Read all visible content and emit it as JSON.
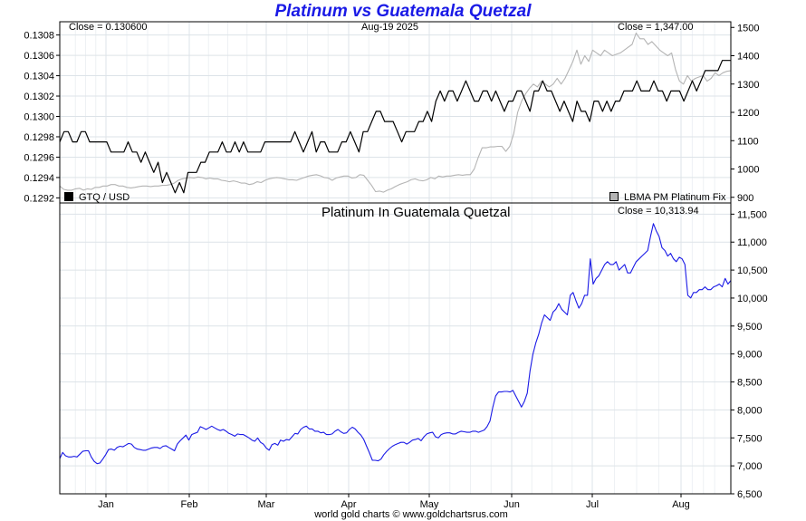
{
  "title": "Platinum vs Guatemala Quetzal",
  "footer": "world gold charts © www.goldchartsrus.com",
  "top_panel": {
    "close_left": "Close = 0.130600",
    "date_label": "Aug-19  2025",
    "close_right": "Close = 1,347.00",
    "legend_left": "GTQ / USD",
    "legend_right": "LBMA PM Platinum Fix",
    "legend_left_color": "#000000",
    "legend_right_color": "#b4b4b4"
  },
  "bottom_panel": {
    "subtitle": "Platinum In Guatemala Quetzal",
    "close_label": "Close = 10,313.94"
  },
  "chart_data": [
    {
      "type": "line",
      "panel": "top",
      "x_tick_labels": [
        "Jan",
        "Feb",
        "Mar",
        "Apr",
        "May",
        "Jun",
        "Jul",
        "Aug"
      ],
      "y_left_ticks": [
        "0.1292",
        "0.1294",
        "0.1296",
        "0.1298",
        "0.1300",
        "0.1302",
        "0.1304",
        "0.1306",
        "0.1308"
      ],
      "y_left_range": [
        0.12915,
        0.13093
      ],
      "y_right_ticks": [
        "900",
        "1000",
        "1100",
        "1200",
        "1300",
        "1400",
        "1500"
      ],
      "y_right_range": [
        880,
        1520
      ],
      "grid": true,
      "series": [
        {
          "name": "GTQ / USD",
          "axis": "left",
          "color": "#000000",
          "values": [
            0.12975,
            0.12985,
            0.12985,
            0.12975,
            0.12975,
            0.12985,
            0.12985,
            0.12975,
            0.12975,
            0.12975,
            0.12975,
            0.12975,
            0.12965,
            0.12965,
            0.12965,
            0.12965,
            0.12975,
            0.12965,
            0.12965,
            0.12955,
            0.12965,
            0.12955,
            0.12945,
            0.12955,
            0.12935,
            0.12945,
            0.12935,
            0.12925,
            0.12935,
            0.12925,
            0.12945,
            0.12945,
            0.12945,
            0.12955,
            0.12955,
            0.12965,
            0.12965,
            0.12965,
            0.12975,
            0.12965,
            0.12965,
            0.12975,
            0.12965,
            0.12975,
            0.12965,
            0.12965,
            0.12965,
            0.12965,
            0.12975,
            0.12975,
            0.12975,
            0.12975,
            0.12975,
            0.12975,
            0.12975,
            0.12985,
            0.12975,
            0.12965,
            0.12975,
            0.12985,
            0.12965,
            0.12975,
            0.12975,
            0.12965,
            0.12965,
            0.12965,
            0.12975,
            0.12975,
            0.12985,
            0.12975,
            0.12965,
            0.12985,
            0.12985,
            0.12995,
            0.13005,
            0.13005,
            0.12995,
            0.12995,
            0.12995,
            0.12985,
            0.12975,
            0.12985,
            0.12985,
            0.12985,
            0.12995,
            0.12995,
            0.13005,
            0.12995,
            0.13015,
            0.13025,
            0.13015,
            0.13025,
            0.13025,
            0.13015,
            0.13025,
            0.13035,
            0.13025,
            0.13015,
            0.13015,
            0.13025,
            0.13025,
            0.13015,
            0.13025,
            0.13015,
            0.13005,
            0.13015,
            0.13015,
            0.13025,
            0.13025,
            0.13015,
            0.13005,
            0.13025,
            0.13025,
            0.13035,
            0.13025,
            0.13025,
            0.13015,
            0.13005,
            0.13015,
            0.13005,
            0.12995,
            0.13015,
            0.13005,
            0.13005,
            0.12995,
            0.13015,
            0.13015,
            0.13005,
            0.13015,
            0.13005,
            0.13015,
            0.13015,
            0.13025,
            0.13025,
            0.13025,
            0.13035,
            0.13025,
            0.13025,
            0.13025,
            0.13035,
            0.13025,
            0.13025,
            0.13015,
            0.13025,
            0.13025,
            0.13025,
            0.13015,
            0.13025,
            0.13035,
            0.13025,
            0.13035,
            0.13045,
            0.13045,
            0.13045,
            0.13045,
            0.13055,
            0.13055,
            0.13055
          ]
        },
        {
          "name": "LBMA PM Platinum Fix",
          "axis": "right",
          "color": "#b4b4b4",
          "values": [
            940,
            928,
            925,
            925,
            930,
            932,
            925,
            930,
            928,
            935,
            935,
            940,
            940,
            945,
            945,
            940,
            940,
            935,
            933,
            935,
            938,
            940,
            940,
            938,
            940,
            940,
            942,
            942,
            945,
            950,
            960,
            965,
            968,
            970,
            968,
            972,
            970,
            965,
            968,
            965,
            965,
            960,
            958,
            955,
            958,
            955,
            950,
            950,
            945,
            948,
            955,
            952,
            960,
            965,
            968,
            970,
            968,
            965,
            962,
            962,
            960,
            965,
            970,
            975,
            978,
            980,
            976,
            970,
            968,
            960,
            968,
            972,
            975,
            975,
            968,
            970,
            980,
            978,
            960,
            942,
            920,
            922,
            918,
            925,
            930,
            938,
            945,
            950,
            955,
            962,
            965,
            960,
            958,
            962,
            970,
            965,
            975,
            972,
            975,
            975,
            978,
            980,
            978,
            980,
            980,
            1000,
            1040,
            1075,
            1075,
            1078,
            1078,
            1080,
            1080,
            1062,
            1080,
            1125,
            1200,
            1240,
            1265,
            1285,
            1300,
            1290,
            1310,
            1300,
            1290,
            1300,
            1320,
            1300,
            1320,
            1350,
            1380,
            1420,
            1370,
            1400,
            1380,
            1420,
            1410,
            1400,
            1420,
            1410,
            1400,
            1405,
            1410,
            1420,
            1430,
            1440,
            1480,
            1460,
            1460,
            1440,
            1450,
            1435,
            1420,
            1410,
            1400,
            1410,
            1350,
            1310,
            1300,
            1330,
            1310,
            1320,
            1325,
            1330,
            1310,
            1320,
            1340,
            1330,
            1340,
            1345,
            1347
          ]
        }
      ]
    },
    {
      "type": "line",
      "panel": "bottom",
      "title": "Platinum In Guatemala Quetzal",
      "x_tick_labels": [
        "Jan",
        "Feb",
        "Mar",
        "Apr",
        "May",
        "Jun",
        "Jul",
        "Aug"
      ],
      "y_ticks": [
        "6,500",
        "7,000",
        "7,500",
        "8,000",
        "8,500",
        "9,000",
        "9,500",
        "10,000",
        "10,500",
        "11,000",
        "11,500"
      ],
      "y_range": [
        6500,
        11700
      ],
      "grid": true,
      "series": [
        {
          "name": "",
          "color": "#1a1ae6",
          "values": [
            7130,
            7240,
            7180,
            7160,
            7160,
            7170,
            7160,
            7210,
            7260,
            7270,
            7270,
            7160,
            7080,
            7040,
            7050,
            7120,
            7200,
            7290,
            7300,
            7280,
            7330,
            7350,
            7340,
            7370,
            7400,
            7390,
            7330,
            7300,
            7290,
            7280,
            7280,
            7300,
            7320,
            7330,
            7330,
            7310,
            7350,
            7360,
            7330,
            7300,
            7270,
            7390,
            7450,
            7500,
            7550,
            7460,
            7560,
            7580,
            7600,
            7700,
            7680,
            7650,
            7680,
            7710,
            7680,
            7650,
            7630,
            7650,
            7620,
            7580,
            7560,
            7530,
            7570,
            7560,
            7560,
            7530,
            7500,
            7460,
            7440,
            7500,
            7420,
            7390,
            7320,
            7280,
            7380,
            7400,
            7370,
            7460,
            7440,
            7470,
            7460,
            7520,
            7580,
            7570,
            7650,
            7690,
            7710,
            7660,
            7660,
            7620,
            7620,
            7590,
            7600,
            7560,
            7560,
            7570,
            7620,
            7650,
            7610,
            7580,
            7590,
            7650,
            7690,
            7660,
            7600,
            7550,
            7470,
            7350,
            7230,
            7100,
            7100,
            7090,
            7120,
            7200,
            7260,
            7310,
            7350,
            7380,
            7400,
            7420,
            7420,
            7390,
            7420,
            7460,
            7470,
            7490,
            7450,
            7520,
            7570,
            7590,
            7600,
            7520,
            7500,
            7560,
            7580,
            7590,
            7590,
            7570,
            7570,
            7600,
            7620,
            7610,
            7600,
            7600,
            7620,
            7620,
            7600,
            7620,
            7640,
            7700,
            7800,
            8050,
            8250,
            8320,
            8320,
            8330,
            8330,
            8320,
            8350,
            8250,
            8150,
            8050,
            8150,
            8300,
            8700,
            9000,
            9200,
            9350,
            9550,
            9700,
            9650,
            9600,
            9750,
            9800,
            9900,
            9800,
            9750,
            9700,
            10050,
            10100,
            9950,
            9820,
            9900,
            10050,
            10050,
            10700,
            10250,
            10350,
            10400,
            10500,
            10600,
            10650,
            10600,
            10600,
            10650,
            10500,
            10550,
            10600,
            10450,
            10450,
            10550,
            10650,
            10700,
            10750,
            10800,
            10850,
            11100,
            11330,
            11200,
            11100,
            10900,
            10850,
            10750,
            10800,
            10700,
            10650,
            10730,
            10700,
            10600,
            10050,
            10000,
            10100,
            10100,
            10150,
            10150,
            10200,
            10150,
            10150,
            10200,
            10220,
            10250,
            10200,
            10350,
            10250,
            10313.94
          ]
        }
      ]
    }
  ]
}
